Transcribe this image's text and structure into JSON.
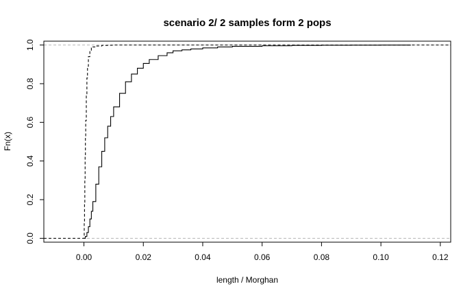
{
  "chart_data": {
    "type": "line",
    "subtype": "empirical-cdf",
    "title": "scenario 2/ 2 samples form 2 pops",
    "xlabel": "length / Morghan",
    "ylabel": "Fn(x)",
    "xlim": [
      -0.0135,
      0.1235
    ],
    "ylim": [
      -0.02,
      1.02
    ],
    "x_ticks": [
      0.0,
      0.02,
      0.04,
      0.06,
      0.08,
      0.1,
      0.12
    ],
    "x_tick_labels": [
      "0.00",
      "0.02",
      "0.04",
      "0.06",
      "0.08",
      "0.10",
      "0.12"
    ],
    "y_ticks": [
      0.0,
      0.2,
      0.4,
      0.6,
      0.8,
      1.0
    ],
    "y_tick_labels": [
      "0.0",
      "0.2",
      "0.4",
      "0.6",
      "0.8",
      "1.0"
    ],
    "reference_lines": [
      0,
      1
    ],
    "series": [
      {
        "line_style": "solid",
        "x": [
          0.0,
          0.0005,
          0.001,
          0.0015,
          0.002,
          0.0025,
          0.003,
          0.004,
          0.005,
          0.006,
          0.007,
          0.008,
          0.009,
          0.01,
          0.012,
          0.014,
          0.016,
          0.018,
          0.02,
          0.022,
          0.025,
          0.028,
          0.03,
          0.033,
          0.036,
          0.04,
          0.045,
          0.05,
          0.06,
          0.07,
          0.08,
          0.09,
          0.1,
          0.11
        ],
        "y": [
          0.0,
          0.01,
          0.03,
          0.06,
          0.1,
          0.14,
          0.19,
          0.28,
          0.37,
          0.45,
          0.52,
          0.58,
          0.63,
          0.68,
          0.75,
          0.81,
          0.85,
          0.88,
          0.905,
          0.925,
          0.945,
          0.96,
          0.97,
          0.975,
          0.98,
          0.985,
          0.99,
          0.993,
          0.996,
          0.998,
          0.999,
          0.9995,
          0.9998,
          1.0
        ]
      },
      {
        "line_style": "dashed",
        "x": [
          -0.0135,
          0.0,
          0.0001,
          0.0002,
          0.0003,
          0.0004,
          0.0005,
          0.0006,
          0.0008,
          0.001,
          0.0012,
          0.0015,
          0.002,
          0.0025,
          0.003,
          0.004,
          0.006,
          0.008,
          0.01,
          0.1235
        ],
        "y": [
          0.0,
          0.0,
          0.08,
          0.18,
          0.3,
          0.42,
          0.52,
          0.61,
          0.74,
          0.83,
          0.89,
          0.94,
          0.97,
          0.985,
          0.99,
          0.995,
          0.998,
          0.999,
          1.0,
          1.0
        ]
      }
    ]
  }
}
